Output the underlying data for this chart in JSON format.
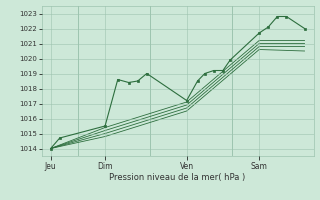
{
  "background_color": "#cde8d8",
  "grid_color": "#9dc4af",
  "line_color": "#2d6e3e",
  "marker_color": "#2d6e3e",
  "ylim": [
    1013.5,
    1023.5
  ],
  "yticks": [
    1014,
    1015,
    1016,
    1017,
    1018,
    1019,
    1020,
    1021,
    1022,
    1023
  ],
  "xlabel": "Pression niveau de la mer( hPa )",
  "day_labels": [
    "Jeu",
    "Dim",
    "Ven",
    "Sam"
  ],
  "day_positions": [
    0.5,
    3.5,
    8.0,
    12.0
  ],
  "vline_positions": [
    2.0,
    6.0,
    10.5
  ],
  "xmin": 0.0,
  "xmax": 15.0,
  "series": [
    {
      "x": [
        0.5,
        1.0,
        3.5,
        4.2,
        4.8,
        5.3,
        5.8,
        8.0,
        8.6,
        9.0,
        9.5,
        10.0,
        10.4,
        12.0,
        12.5,
        13.0,
        13.5,
        14.5
      ],
      "y": [
        1014.0,
        1014.7,
        1015.5,
        1018.6,
        1018.4,
        1018.5,
        1019.0,
        1017.2,
        1018.5,
        1019.0,
        1019.2,
        1019.2,
        1019.9,
        1021.7,
        1022.1,
        1022.8,
        1022.8,
        1022.0
      ],
      "marker": true
    },
    {
      "x": [
        0.5,
        3.5,
        8.0,
        12.0,
        14.5
      ],
      "y": [
        1014.0,
        1015.2,
        1016.9,
        1021.0,
        1021.0
      ],
      "marker": false
    },
    {
      "x": [
        0.5,
        3.5,
        8.0,
        12.0,
        14.5
      ],
      "y": [
        1014.0,
        1015.0,
        1016.7,
        1020.8,
        1020.8
      ],
      "marker": false
    },
    {
      "x": [
        0.5,
        3.5,
        8.0,
        12.0,
        14.5
      ],
      "y": [
        1014.0,
        1014.8,
        1016.5,
        1020.6,
        1020.5
      ],
      "marker": false
    },
    {
      "x": [
        0.5,
        3.5,
        8.0,
        12.0,
        14.5
      ],
      "y": [
        1014.0,
        1015.4,
        1017.1,
        1021.2,
        1021.2
      ],
      "marker": false
    }
  ]
}
